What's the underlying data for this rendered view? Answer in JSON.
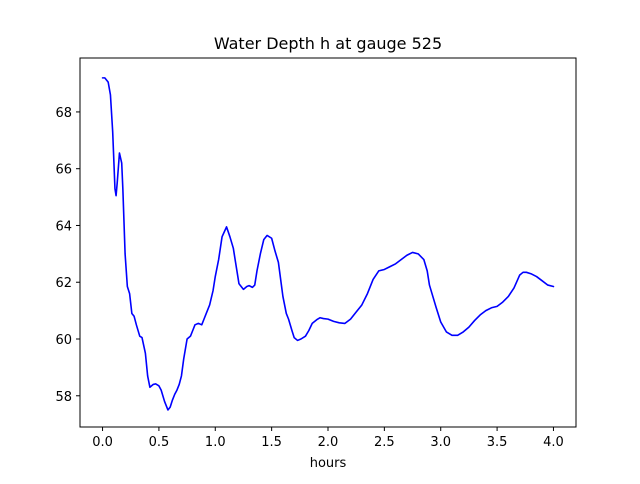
{
  "chart_data": {
    "type": "line",
    "title": "Water Depth h at gauge 525",
    "xlabel": "hours",
    "ylabel": "",
    "xlim": [
      -0.2,
      4.2
    ],
    "ylim": [
      56.9,
      69.9
    ],
    "xticks": [
      0.0,
      0.5,
      1.0,
      1.5,
      2.0,
      2.5,
      3.0,
      3.5,
      4.0
    ],
    "xtick_labels": [
      "0.0",
      "0.5",
      "1.0",
      "1.5",
      "2.0",
      "2.5",
      "3.0",
      "3.5",
      "4.0"
    ],
    "yticks": [
      58,
      60,
      62,
      64,
      66,
      68
    ],
    "ytick_labels": [
      "58",
      "60",
      "62",
      "64",
      "66",
      "68"
    ],
    "grid": false,
    "series": [
      {
        "color": "#0000ff",
        "x": [
          0.0,
          0.02,
          0.05,
          0.07,
          0.09,
          0.11,
          0.12,
          0.13,
          0.15,
          0.17,
          0.18,
          0.2,
          0.22,
          0.24,
          0.26,
          0.28,
          0.3,
          0.33,
          0.35,
          0.38,
          0.4,
          0.42,
          0.45,
          0.47,
          0.5,
          0.52,
          0.55,
          0.58,
          0.6,
          0.62,
          0.64,
          0.66,
          0.68,
          0.7,
          0.72,
          0.75,
          0.78,
          0.8,
          0.82,
          0.85,
          0.88,
          0.9,
          0.92,
          0.95,
          0.98,
          1.0,
          1.03,
          1.06,
          1.1,
          1.13,
          1.16,
          1.18,
          1.2,
          1.21,
          1.22,
          1.25,
          1.28,
          1.3,
          1.33,
          1.35,
          1.37,
          1.4,
          1.43,
          1.46,
          1.5,
          1.53,
          1.56,
          1.58,
          1.6,
          1.63,
          1.65,
          1.68,
          1.7,
          1.73,
          1.76,
          1.8,
          1.83,
          1.86,
          1.9,
          1.93,
          1.96,
          2.0,
          2.05,
          2.1,
          2.15,
          2.2,
          2.25,
          2.3,
          2.35,
          2.4,
          2.45,
          2.5,
          2.55,
          2.6,
          2.65,
          2.7,
          2.75,
          2.8,
          2.85,
          2.88,
          2.9,
          2.93,
          2.96,
          3.0,
          3.05,
          3.1,
          3.15,
          3.2,
          3.25,
          3.3,
          3.35,
          3.4,
          3.45,
          3.5,
          3.55,
          3.6,
          3.65,
          3.7,
          3.73,
          3.76,
          3.8,
          3.85,
          3.9,
          3.95,
          4.0
        ],
        "y": [
          69.2,
          69.2,
          69.05,
          68.6,
          67.3,
          65.3,
          65.05,
          65.5,
          66.55,
          66.2,
          65.3,
          63.0,
          61.85,
          61.6,
          60.9,
          60.8,
          60.5,
          60.1,
          60.05,
          59.5,
          58.7,
          58.3,
          58.4,
          58.42,
          58.35,
          58.2,
          57.8,
          57.5,
          57.6,
          57.85,
          58.05,
          58.2,
          58.4,
          58.7,
          59.3,
          60.0,
          60.1,
          60.3,
          60.5,
          60.55,
          60.5,
          60.7,
          60.9,
          61.2,
          61.7,
          62.2,
          62.8,
          63.6,
          63.95,
          63.6,
          63.2,
          62.7,
          62.2,
          61.95,
          61.9,
          61.75,
          61.85,
          61.88,
          61.82,
          61.9,
          62.4,
          63.0,
          63.5,
          63.65,
          63.55,
          63.1,
          62.7,
          62.1,
          61.5,
          60.9,
          60.7,
          60.3,
          60.05,
          59.95,
          60.0,
          60.1,
          60.3,
          60.55,
          60.68,
          60.75,
          60.72,
          60.7,
          60.62,
          60.57,
          60.55,
          60.7,
          60.95,
          61.2,
          61.6,
          62.1,
          62.4,
          62.45,
          62.55,
          62.65,
          62.8,
          62.95,
          63.05,
          63.0,
          62.8,
          62.4,
          61.9,
          61.5,
          61.1,
          60.6,
          60.25,
          60.13,
          60.13,
          60.25,
          60.42,
          60.65,
          60.85,
          61.0,
          61.1,
          61.15,
          61.3,
          61.5,
          61.8,
          62.25,
          62.35,
          62.35,
          62.3,
          62.2,
          62.05,
          61.9,
          61.85
        ]
      }
    ]
  }
}
